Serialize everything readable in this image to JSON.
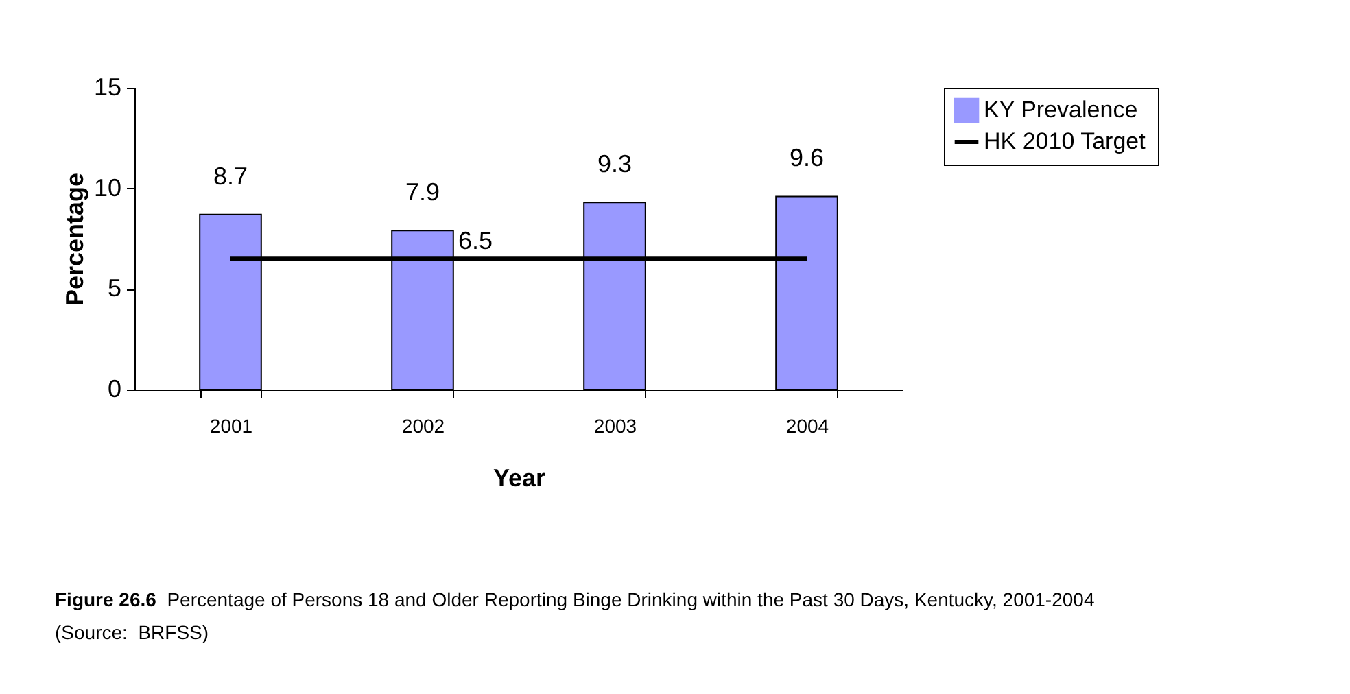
{
  "chart_data": {
    "type": "bar",
    "xlabel": "Year",
    "ylabel": "Percentage",
    "categories": [
      "2001",
      "2002",
      "2003",
      "2004"
    ],
    "series": [
      {
        "name": "KY Prevalence",
        "color": "#9999ff",
        "values": [
          8.7,
          7.9,
          9.3,
          9.6
        ],
        "value_labels": [
          "8.7",
          "7.9",
          "9.3",
          "9.6"
        ]
      },
      {
        "name": "HK 2010 Target",
        "type": "line",
        "color": "#000000",
        "values": [
          6.5,
          6.5,
          6.5,
          6.5
        ],
        "value_labels": [
          null,
          "6.5",
          null,
          null
        ]
      }
    ],
    "ylim": [
      0,
      15
    ],
    "yticks": [
      0,
      5,
      10,
      15
    ],
    "grid": false,
    "legend": "right",
    "annotations": [
      "Figure 26.6",
      "Percentage of Persons 18 and Older Reporting Binge Drinking within the Past 30 Days, Kentucky, 2001-2004  (Source:  BRFSS)"
    ]
  }
}
